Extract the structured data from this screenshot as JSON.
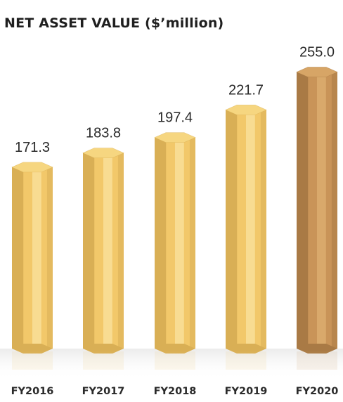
{
  "chart_data": {
    "type": "bar",
    "title": "NET ASSET VALUE ($’million)",
    "categories": [
      "FY2016",
      "FY2017",
      "FY2018",
      "FY2019",
      "FY2020"
    ],
    "values": [
      171.3,
      183.8,
      197.4,
      221.7,
      255.0
    ],
    "value_labels": [
      "171.3",
      "183.8",
      "197.4",
      "221.7",
      "255.0"
    ],
    "highlight_index": 4,
    "colors": {
      "bar": "#F2C86A",
      "bar_shade": "#D9AF55",
      "bar_light": "#F8DC92",
      "bar_top": "#F6D680",
      "highlight": "#C99458",
      "highlight_shade": "#A97A45",
      "highlight_light": "#D9A96B",
      "highlight_top": "#D7A566"
    },
    "grid": false,
    "legend": "none"
  }
}
